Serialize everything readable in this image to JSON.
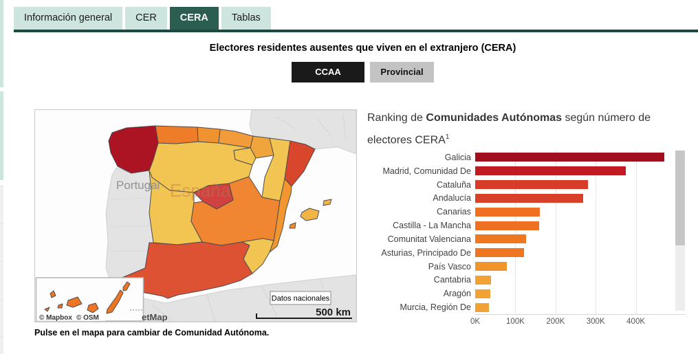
{
  "theme": {
    "tab_active_bg": "#2b5d50",
    "tab_inactive_bg": "#cde5de",
    "tab_underline": "#1d4a40",
    "button_active_bg": "#1a1a1a",
    "button_inactive_bg": "#c3c3c3"
  },
  "tabs": [
    {
      "label": "Información general",
      "active": false
    },
    {
      "label": "CER",
      "active": false
    },
    {
      "label": "CERA",
      "active": true
    },
    {
      "label": "Tablas",
      "active": false
    }
  ],
  "header": {
    "title": "Electores residentes ausentes que viven en el extranjero (CERA)",
    "view_buttons": [
      {
        "label": "CCAA",
        "active": true
      },
      {
        "label": "Provincial",
        "active": false
      }
    ]
  },
  "map": {
    "neighbor_label": "Portugal",
    "country_label": "España",
    "button_label": "Datos nacionales",
    "scale_label": "500 km",
    "attribution_mapbox": "© Mapbox",
    "attribution_osm": "© OSM",
    "attribution_partial": "etMap",
    "caption": "Pulse en el mapa para cambiar de Comunidad Autónoma.",
    "region_colors": {
      "galicia": "#ac1323",
      "asturias": "#ee7c28",
      "cantabria": "#f0922f",
      "pais_vasco": "#f29b3a",
      "navarra": "#f0a43c",
      "la_rioja": "#f2c452",
      "castilla_y_leon": "#f2c452",
      "aragon": "#f2c452",
      "cataluna": "#d8462c",
      "madrid": "#d04140",
      "castilla_la_mancha": "#f08632",
      "extremadura": "#f2c452",
      "c_valenciana": "#f2962f",
      "murcia": "#f2c452",
      "andalucia": "#dd5232",
      "mallorca": "#f2b445",
      "menorca": "#f2b445",
      "ibiza": "#ef8d2e",
      "canarias": "#ee7524"
    }
  },
  "chart_data": {
    "type": "bar",
    "orientation": "horizontal",
    "title_prefix": "Ranking de ",
    "title_bold": "Comunidades Autónomas",
    "title_suffix": " según número de electores CERA",
    "title_superscript": "1",
    "categories": [
      "Galicia",
      "Madrid, Comunidad De",
      "Cataluña",
      "Andalucía",
      "Canarias",
      "Castilla - La Mancha",
      "Comunitat Valenciana",
      "Asturias, Principado De",
      "País Vasco",
      "Cantabria",
      "Aragón",
      "Murcia, Región De"
    ],
    "values": [
      471000,
      375000,
      281000,
      268000,
      161000,
      159000,
      126000,
      122000,
      78000,
      39000,
      37000,
      35000
    ],
    "bar_colors": [
      "#a10e1e",
      "#c01b22",
      "#d63c28",
      "#d84129",
      "#ee7020",
      "#ee7020",
      "#ee7720",
      "#ee7620",
      "#f0942c",
      "#f0a232",
      "#f0a232",
      "#f0a232"
    ],
    "x_ticks": [
      "0K",
      "100K",
      "200K",
      "300K",
      "400K"
    ],
    "x_tick_values": [
      0,
      100000,
      200000,
      300000,
      400000
    ],
    "xlim": [
      0,
      500000
    ],
    "grid": true,
    "legend": false
  }
}
